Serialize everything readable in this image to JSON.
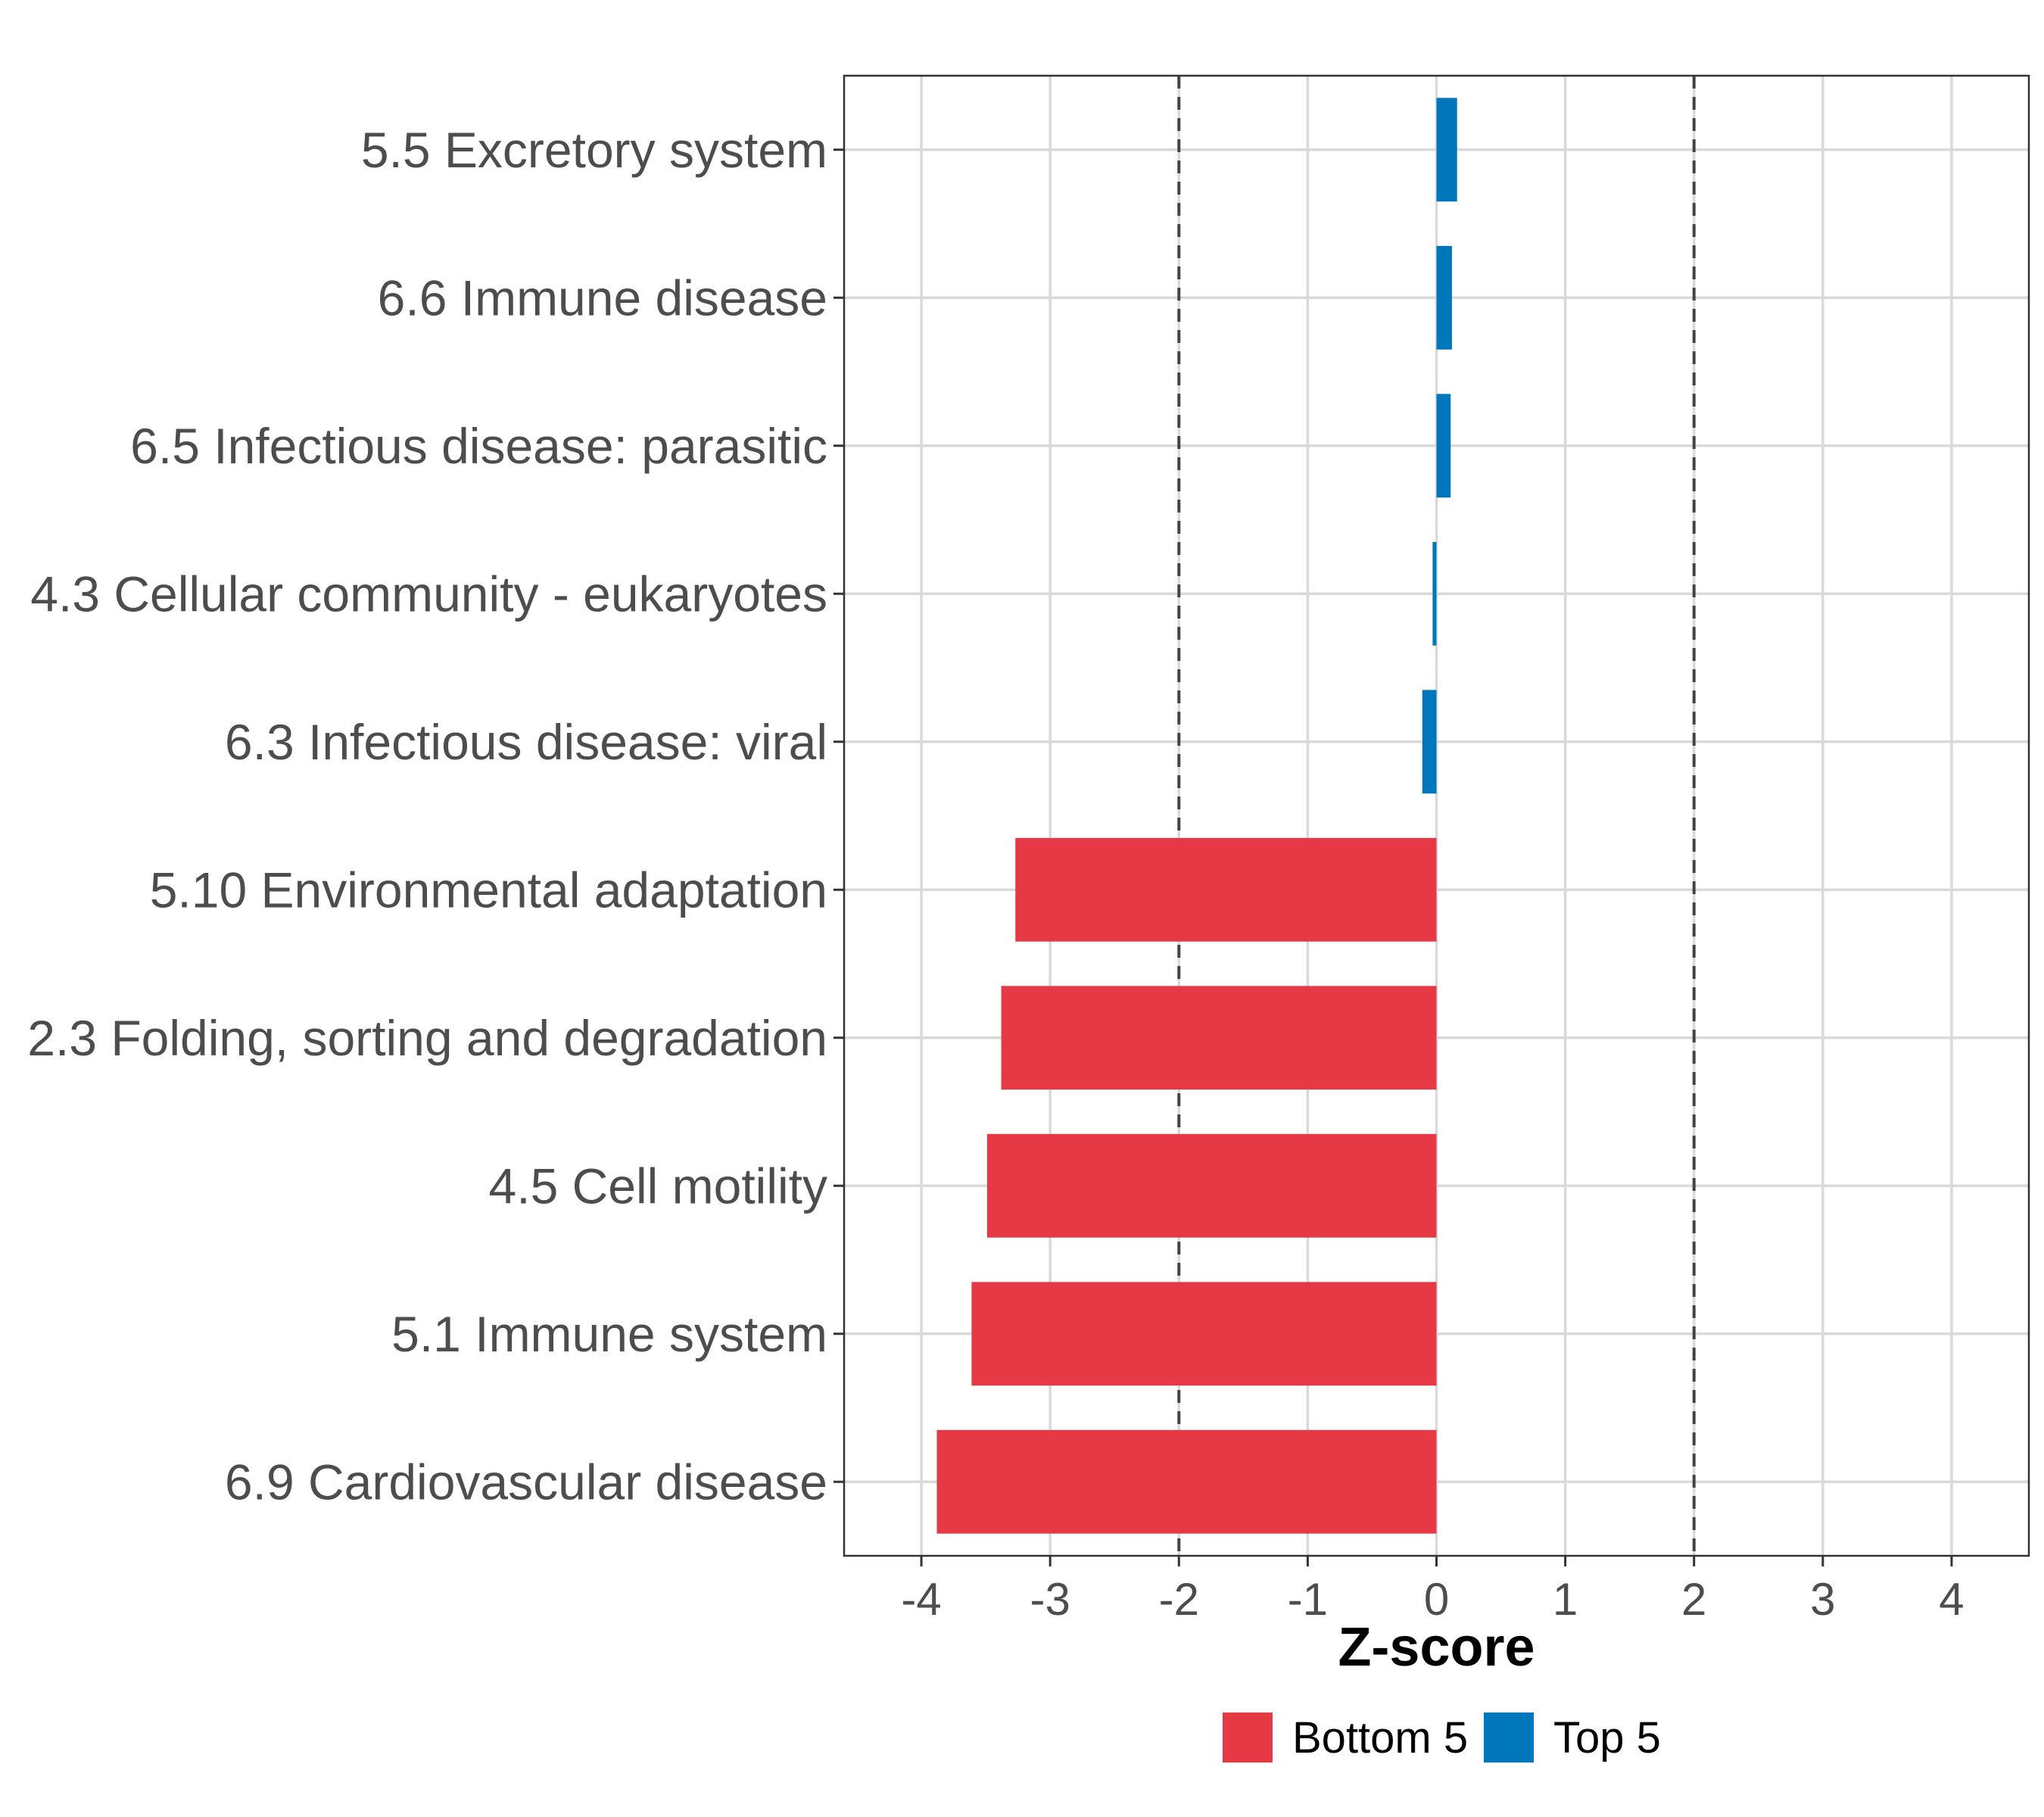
{
  "chart_data": {
    "type": "bar",
    "orientation": "horizontal",
    "xlabel": "Z-score",
    "xlim": [
      -4.6,
      4.6
    ],
    "xticks": [
      -4,
      -3,
      -2,
      -1,
      0,
      1,
      2,
      3,
      4
    ],
    "xtick_labels": [
      "-4",
      "-3",
      "-2",
      "-1",
      "0",
      "1",
      "2",
      "3",
      "4"
    ],
    "reference_lines": [
      -2,
      2
    ],
    "categories": [
      "5.5 Excretory system",
      "6.6 Immune disease",
      "6.5 Infectious disease: parasitic",
      "4.3 Cellular community - eukaryotes",
      "6.3 Infectious disease: viral",
      "5.10 Environmental adaptation",
      "2.3 Folding, sorting and degradation",
      "4.5 Cell motility",
      "5.1 Immune system",
      "6.9 Cardiovascular disease"
    ],
    "values": [
      0.16,
      0.12,
      0.11,
      -0.03,
      -0.11,
      -3.27,
      -3.38,
      -3.49,
      -3.61,
      -3.88
    ],
    "groups": [
      "Top 5",
      "Top 5",
      "Top 5",
      "Top 5",
      "Top 5",
      "Bottom 5",
      "Bottom 5",
      "Bottom 5",
      "Bottom 5",
      "Bottom 5"
    ],
    "legend": [
      {
        "label": "Bottom 5",
        "color": "#e63946"
      },
      {
        "label": "Top 5",
        "color": "#0077bb"
      }
    ],
    "legend_position": "bottom",
    "grid": true
  }
}
